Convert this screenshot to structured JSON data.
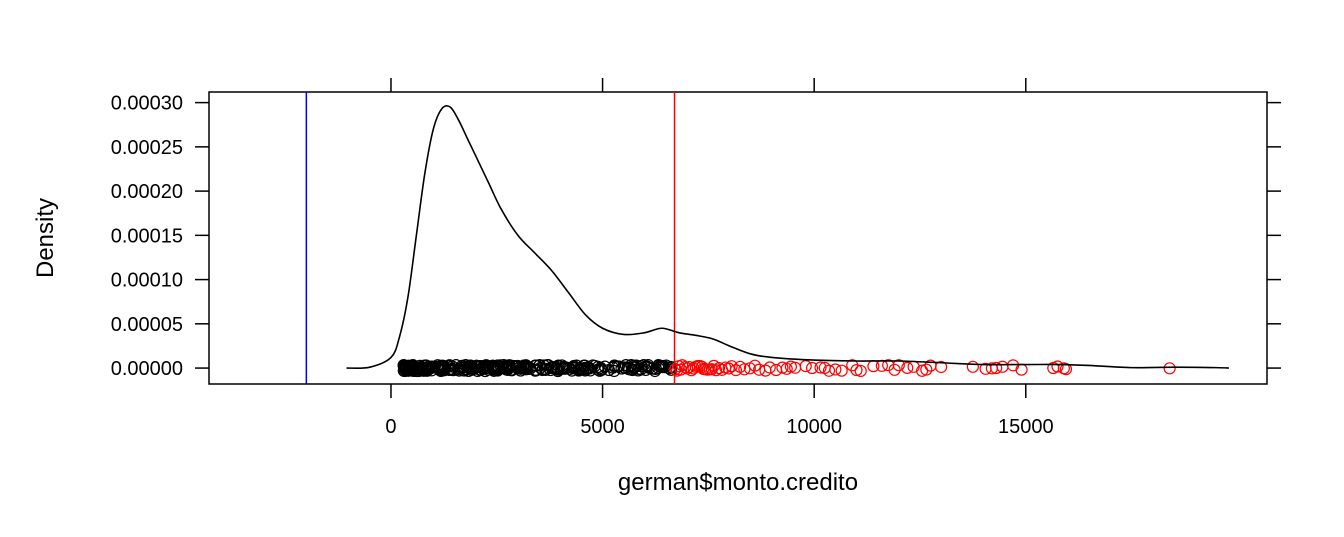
{
  "chart_data": {
    "type": "density",
    "xlabel": "german$monto.credito",
    "ylabel": "Density",
    "xlim": [
      -4300,
      20700
    ],
    "ylim": [
      -1.8e-05,
      0.000312
    ],
    "x_ticks": [
      0,
      5000,
      10000,
      15000
    ],
    "x_tick_labels": [
      "0",
      "5000",
      "10000",
      "15000"
    ],
    "y_ticks": [
      0,
      5e-05,
      0.0001,
      0.00015,
      0.0002,
      0.00025,
      0.0003
    ],
    "y_tick_labels": [
      "0.00000",
      "0.00005",
      "0.00010",
      "0.00015",
      "0.00020",
      "0.00025",
      "0.00030"
    ],
    "density_curve": {
      "color": "#000000",
      "x": [
        -1050,
        -500,
        0,
        200,
        400,
        600,
        800,
        1000,
        1200,
        1400,
        1600,
        1800,
        2000,
        2300,
        2600,
        3000,
        3400,
        3800,
        4200,
        4600,
        5000,
        5500,
        6000,
        6400,
        6800,
        7200,
        7600,
        8000,
        8500,
        9000,
        10000,
        11000,
        12000,
        13000,
        14000,
        15000,
        15800,
        16500,
        17500,
        18500,
        19500,
        19800
      ],
      "y": [
        0.0,
        1e-06,
        1.2e-05,
        3.5e-05,
        8e-05,
        0.00015,
        0.00022,
        0.00027,
        0.000293,
        0.000295,
        0.00028,
        0.00026,
        0.00024,
        0.00021,
        0.00018,
        0.00015,
        0.00013,
        0.00011,
        8.5e-05,
        6e-05,
        4.5e-05,
        3.8e-05,
        4e-05,
        4.5e-05,
        4e-05,
        3.7e-05,
        3.3e-05,
        2.5e-05,
        1.6e-05,
        1.2e-05,
        9e-06,
        8e-06,
        8e-06,
        6e-06,
        4e-06,
        4e-06,
        4e-06,
        3e-06,
        5e-07,
        1e-06,
        5e-07,
        0.0
      ]
    },
    "vertical_lines": [
      {
        "x": -2000,
        "color": "#0000ff"
      },
      {
        "x": 6700,
        "color": "#ff0000"
      }
    ],
    "rug_points": {
      "threshold": 6700,
      "below_color": "#000000",
      "above_color": "#ff0000",
      "below_range": [
        300,
        6700
      ],
      "below_count": 330,
      "above_x": [
        6720,
        6760,
        6800,
        6850,
        6880,
        6950,
        7000,
        7050,
        7100,
        7150,
        7200,
        7250,
        7300,
        7350,
        7380,
        7420,
        7480,
        7530,
        7580,
        7630,
        7680,
        7750,
        7820,
        7900,
        7980,
        8050,
        8150,
        8250,
        8350,
        8480,
        8600,
        8700,
        8850,
        8950,
        9100,
        9250,
        9350,
        9450,
        9550,
        9800,
        9950,
        10150,
        10250,
        10350,
        10500,
        10650,
        10900,
        11000,
        11100,
        11400,
        11600,
        11750,
        11900,
        12000,
        12200,
        12350,
        12550,
        12650,
        12750,
        13000,
        13750,
        14050,
        14200,
        14300,
        14450,
        14700,
        14900,
        15650,
        15750,
        15900,
        15950,
        18400
      ]
    }
  }
}
